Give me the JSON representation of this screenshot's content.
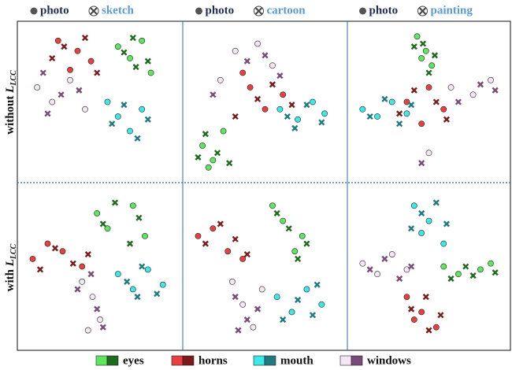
{
  "rows": [
    {
      "text": "without",
      "symbol": "L",
      "subscript": "LCC"
    },
    {
      "text": "with",
      "symbol": "L",
      "subscript": "LCC"
    }
  ],
  "chart_data": [
    {
      "type": "scatter",
      "xlim": [
        0,
        100
      ],
      "ylim": [
        0,
        100
      ],
      "series": [
        {
          "name": "eyes",
          "domain": "photo",
          "color": "#5ee65e",
          "x": [
            62,
            70,
            78,
            84
          ],
          "y": [
            88,
            80,
            92,
            70
          ]
        },
        {
          "name": "eyes",
          "domain": "sketch",
          "color": "#1d6b1d",
          "x": [
            66,
            74,
            82,
            72
          ],
          "y": [
            84,
            74,
            78,
            94
          ]
        },
        {
          "name": "horns",
          "domain": "photo",
          "color": "#e84040",
          "x": [
            22,
            35,
            44,
            30
          ],
          "y": [
            92,
            85,
            78,
            72
          ]
        },
        {
          "name": "horns",
          "domain": "sketch",
          "color": "#7a1a1a",
          "x": [
            26,
            40,
            48,
            18
          ],
          "y": [
            88,
            94,
            70,
            80
          ]
        },
        {
          "name": "mouth",
          "domain": "photo",
          "color": "#3de8e8",
          "x": [
            55,
            62,
            70,
            78
          ],
          "y": [
            50,
            40,
            30,
            45
          ]
        },
        {
          "name": "mouth",
          "domain": "sketch",
          "color": "#1e7a80",
          "x": [
            58,
            66,
            75,
            82
          ],
          "y": [
            35,
            48,
            25,
            38
          ]
        },
        {
          "name": "windows",
          "domain": "photo",
          "color": "#f5e6f5",
          "x": [
            8,
            18,
            30,
            40
          ],
          "y": [
            60,
            50,
            65,
            45
          ]
        },
        {
          "name": "windows",
          "domain": "sketch",
          "color": "#7a4a78",
          "x": [
            12,
            24,
            36,
            15
          ],
          "y": [
            70,
            55,
            58,
            42
          ]
        }
      ]
    },
    {
      "type": "scatter",
      "xlim": [
        0,
        100
      ],
      "ylim": [
        0,
        100
      ],
      "series": [
        {
          "name": "eyes",
          "domain": "photo",
          "color": "#5ee65e",
          "x": [
            8,
            15,
            22,
            12
          ],
          "y": [
            20,
            10,
            30,
            5
          ]
        },
        {
          "name": "eyes",
          "domain": "cartoon",
          "color": "#1d6b1d",
          "x": [
            10,
            18,
            26,
            5
          ],
          "y": [
            28,
            15,
            8,
            12
          ]
        },
        {
          "name": "horns",
          "domain": "photo",
          "color": "#e84040",
          "x": [
            40,
            50,
            62,
            35
          ],
          "y": [
            60,
            45,
            55,
            70
          ]
        },
        {
          "name": "horns",
          "domain": "cartoon",
          "color": "#7a1a1a",
          "x": [
            45,
            55,
            30,
            68
          ],
          "y": [
            52,
            62,
            40,
            48
          ]
        },
        {
          "name": "mouth",
          "domain": "photo",
          "color": "#3de8e8",
          "x": [
            60,
            72,
            82,
            90
          ],
          "y": [
            45,
            38,
            50,
            42
          ]
        },
        {
          "name": "mouth",
          "domain": "cartoon",
          "color": "#1e7a80",
          "x": [
            65,
            78,
            88,
            70
          ],
          "y": [
            40,
            48,
            36,
            32
          ]
        },
        {
          "name": "windows",
          "domain": "photo",
          "color": "#f5e6f5",
          "x": [
            30,
            45,
            55,
            20
          ],
          "y": [
            85,
            90,
            75,
            65
          ]
        },
        {
          "name": "windows",
          "domain": "cartoon",
          "color": "#7a4a78",
          "x": [
            38,
            50,
            15,
            60
          ],
          "y": [
            78,
            82,
            55,
            68
          ]
        }
      ]
    },
    {
      "type": "scatter",
      "xlim": [
        0,
        100
      ],
      "ylim": [
        0,
        100
      ],
      "series": [
        {
          "name": "eyes",
          "domain": "photo",
          "color": "#5ee65e",
          "x": [
            42,
            48,
            52,
            45
          ],
          "y": [
            95,
            85,
            75,
            80
          ]
        },
        {
          "name": "eyes",
          "domain": "painting",
          "color": "#1d6b1d",
          "x": [
            46,
            50,
            40,
            54
          ],
          "y": [
            90,
            70,
            88,
            82
          ]
        },
        {
          "name": "horns",
          "domain": "photo",
          "color": "#e84040",
          "x": [
            35,
            50,
            60,
            45
          ],
          "y": [
            50,
            60,
            45,
            35
          ]
        },
        {
          "name": "horns",
          "domain": "painting",
          "color": "#7a1a1a",
          "x": [
            40,
            55,
            30,
            62
          ],
          "y": [
            58,
            50,
            42,
            38
          ]
        },
        {
          "name": "mouth",
          "domain": "photo",
          "color": "#3de8e8",
          "x": [
            5,
            15,
            25,
            35
          ],
          "y": [
            45,
            40,
            50,
            42
          ]
        },
        {
          "name": "mouth",
          "domain": "painting",
          "color": "#1e7a80",
          "x": [
            10,
            20,
            30,
            38
          ],
          "y": [
            40,
            52,
            35,
            48
          ]
        },
        {
          "name": "windows",
          "domain": "photo",
          "color": "#f5e6f5",
          "x": [
            65,
            80,
            92,
            50
          ],
          "y": [
            60,
            55,
            65,
            15
          ]
        },
        {
          "name": "windows",
          "domain": "painting",
          "color": "#7a4a78",
          "x": [
            70,
            85,
            95,
            45
          ],
          "y": [
            50,
            62,
            58,
            8
          ]
        }
      ]
    },
    {
      "type": "scatter",
      "xlim": [
        0,
        100
      ],
      "ylim": [
        0,
        100
      ],
      "series": [
        {
          "name": "eyes",
          "domain": "photo",
          "color": "#5ee65e",
          "x": [
            48,
            55,
            72,
            80
          ],
          "y": [
            85,
            75,
            90,
            70
          ]
        },
        {
          "name": "eyes",
          "domain": "sketch",
          "color": "#1d6b1d",
          "x": [
            52,
            60,
            76,
            70
          ],
          "y": [
            78,
            92,
            82,
            65
          ]
        },
        {
          "name": "horns",
          "domain": "photo",
          "color": "#e84040",
          "x": [
            5,
            15,
            25,
            38
          ],
          "y": [
            55,
            65,
            60,
            50
          ]
        },
        {
          "name": "horns",
          "domain": "sketch",
          "color": "#7a1a1a",
          "x": [
            10,
            20,
            32,
            42
          ],
          "y": [
            48,
            62,
            52,
            58
          ]
        },
        {
          "name": "mouth",
          "domain": "photo",
          "color": "#3de8e8",
          "x": [
            62,
            72,
            82,
            92
          ],
          "y": [
            45,
            35,
            48,
            38
          ]
        },
        {
          "name": "mouth",
          "domain": "sketch",
          "color": "#1e7a80",
          "x": [
            68,
            78,
            88,
            75
          ],
          "y": [
            40,
            50,
            32,
            30
          ]
        },
        {
          "name": "windows",
          "domain": "photo",
          "color": "#f5e6f5",
          "x": [
            38,
            45,
            50,
            42
          ],
          "y": [
            40,
            30,
            15,
            8
          ]
        },
        {
          "name": "windows",
          "domain": "sketch",
          "color": "#7a4a78",
          "x": [
            35,
            48,
            52,
            44
          ],
          "y": [
            35,
            22,
            10,
            45
          ]
        }
      ]
    },
    {
      "type": "scatter",
      "xlim": [
        0,
        100
      ],
      "ylim": [
        0,
        100
      ],
      "series": [
        {
          "name": "eyes",
          "domain": "photo",
          "color": "#5ee65e",
          "x": [
            55,
            62,
            70,
            75
          ],
          "y": [
            90,
            80,
            60,
            70
          ]
        },
        {
          "name": "eyes",
          "domain": "cartoon",
          "color": "#1d6b1d",
          "x": [
            58,
            66,
            72,
            78
          ],
          "y": [
            85,
            75,
            55,
            65
          ]
        },
        {
          "name": "horns",
          "domain": "photo",
          "color": "#e84040",
          "x": [
            5,
            15,
            25,
            35
          ],
          "y": [
            70,
            75,
            60,
            55
          ]
        },
        {
          "name": "horns",
          "domain": "cartoon",
          "color": "#7a1a1a",
          "x": [
            10,
            20,
            30,
            38
          ],
          "y": [
            65,
            78,
            68,
            58
          ]
        },
        {
          "name": "mouth",
          "domain": "photo",
          "color": "#3de8e8",
          "x": [
            58,
            68,
            78,
            88
          ],
          "y": [
            30,
            20,
            35,
            25
          ]
        },
        {
          "name": "mouth",
          "domain": "cartoon",
          "color": "#1e7a80",
          "x": [
            62,
            72,
            82,
            85
          ],
          "y": [
            15,
            28,
            18,
            38
          ]
        },
        {
          "name": "windows",
          "domain": "photo",
          "color": "#f5e6f5",
          "x": [
            28,
            35,
            42,
            48
          ],
          "y": [
            40,
            25,
            10,
            35
          ]
        },
        {
          "name": "windows",
          "domain": "cartoon",
          "color": "#7a4a78",
          "x": [
            30,
            38,
            45,
            32
          ],
          "y": [
            30,
            15,
            22,
            8
          ]
        }
      ]
    },
    {
      "type": "scatter",
      "xlim": [
        0,
        100
      ],
      "ylim": [
        0,
        100
      ],
      "series": [
        {
          "name": "eyes",
          "domain": "photo",
          "color": "#5ee65e",
          "x": [
            60,
            70,
            85,
            92
          ],
          "y": [
            50,
            45,
            48,
            52
          ]
        },
        {
          "name": "eyes",
          "domain": "painting",
          "color": "#1d6b1d",
          "x": [
            65,
            75,
            80,
            95
          ],
          "y": [
            42,
            50,
            44,
            46
          ]
        },
        {
          "name": "horns",
          "domain": "photo",
          "color": "#e84040",
          "x": [
            35,
            45,
            55,
            40
          ],
          "y": [
            30,
            20,
            10,
            15
          ]
        },
        {
          "name": "horns",
          "domain": "painting",
          "color": "#7a1a1a",
          "x": [
            38,
            48,
            58,
            50
          ],
          "y": [
            22,
            30,
            18,
            8
          ]
        },
        {
          "name": "mouth",
          "domain": "photo",
          "color": "#3de8e8",
          "x": [
            40,
            50,
            60,
            45
          ],
          "y": [
            90,
            80,
            65,
            72
          ]
        },
        {
          "name": "mouth",
          "domain": "painting",
          "color": "#1e7a80",
          "x": [
            45,
            55,
            38,
            62
          ],
          "y": [
            85,
            92,
            75,
            78
          ]
        },
        {
          "name": "windows",
          "domain": "photo",
          "color": "#f5e6f5",
          "x": [
            5,
            15,
            25,
            35
          ],
          "y": [
            52,
            45,
            58,
            48
          ]
        },
        {
          "name": "windows",
          "domain": "painting",
          "color": "#7a4a78",
          "x": [
            10,
            20,
            30,
            38
          ],
          "y": [
            48,
            55,
            42,
            50
          ]
        }
      ]
    }
  ]
}
